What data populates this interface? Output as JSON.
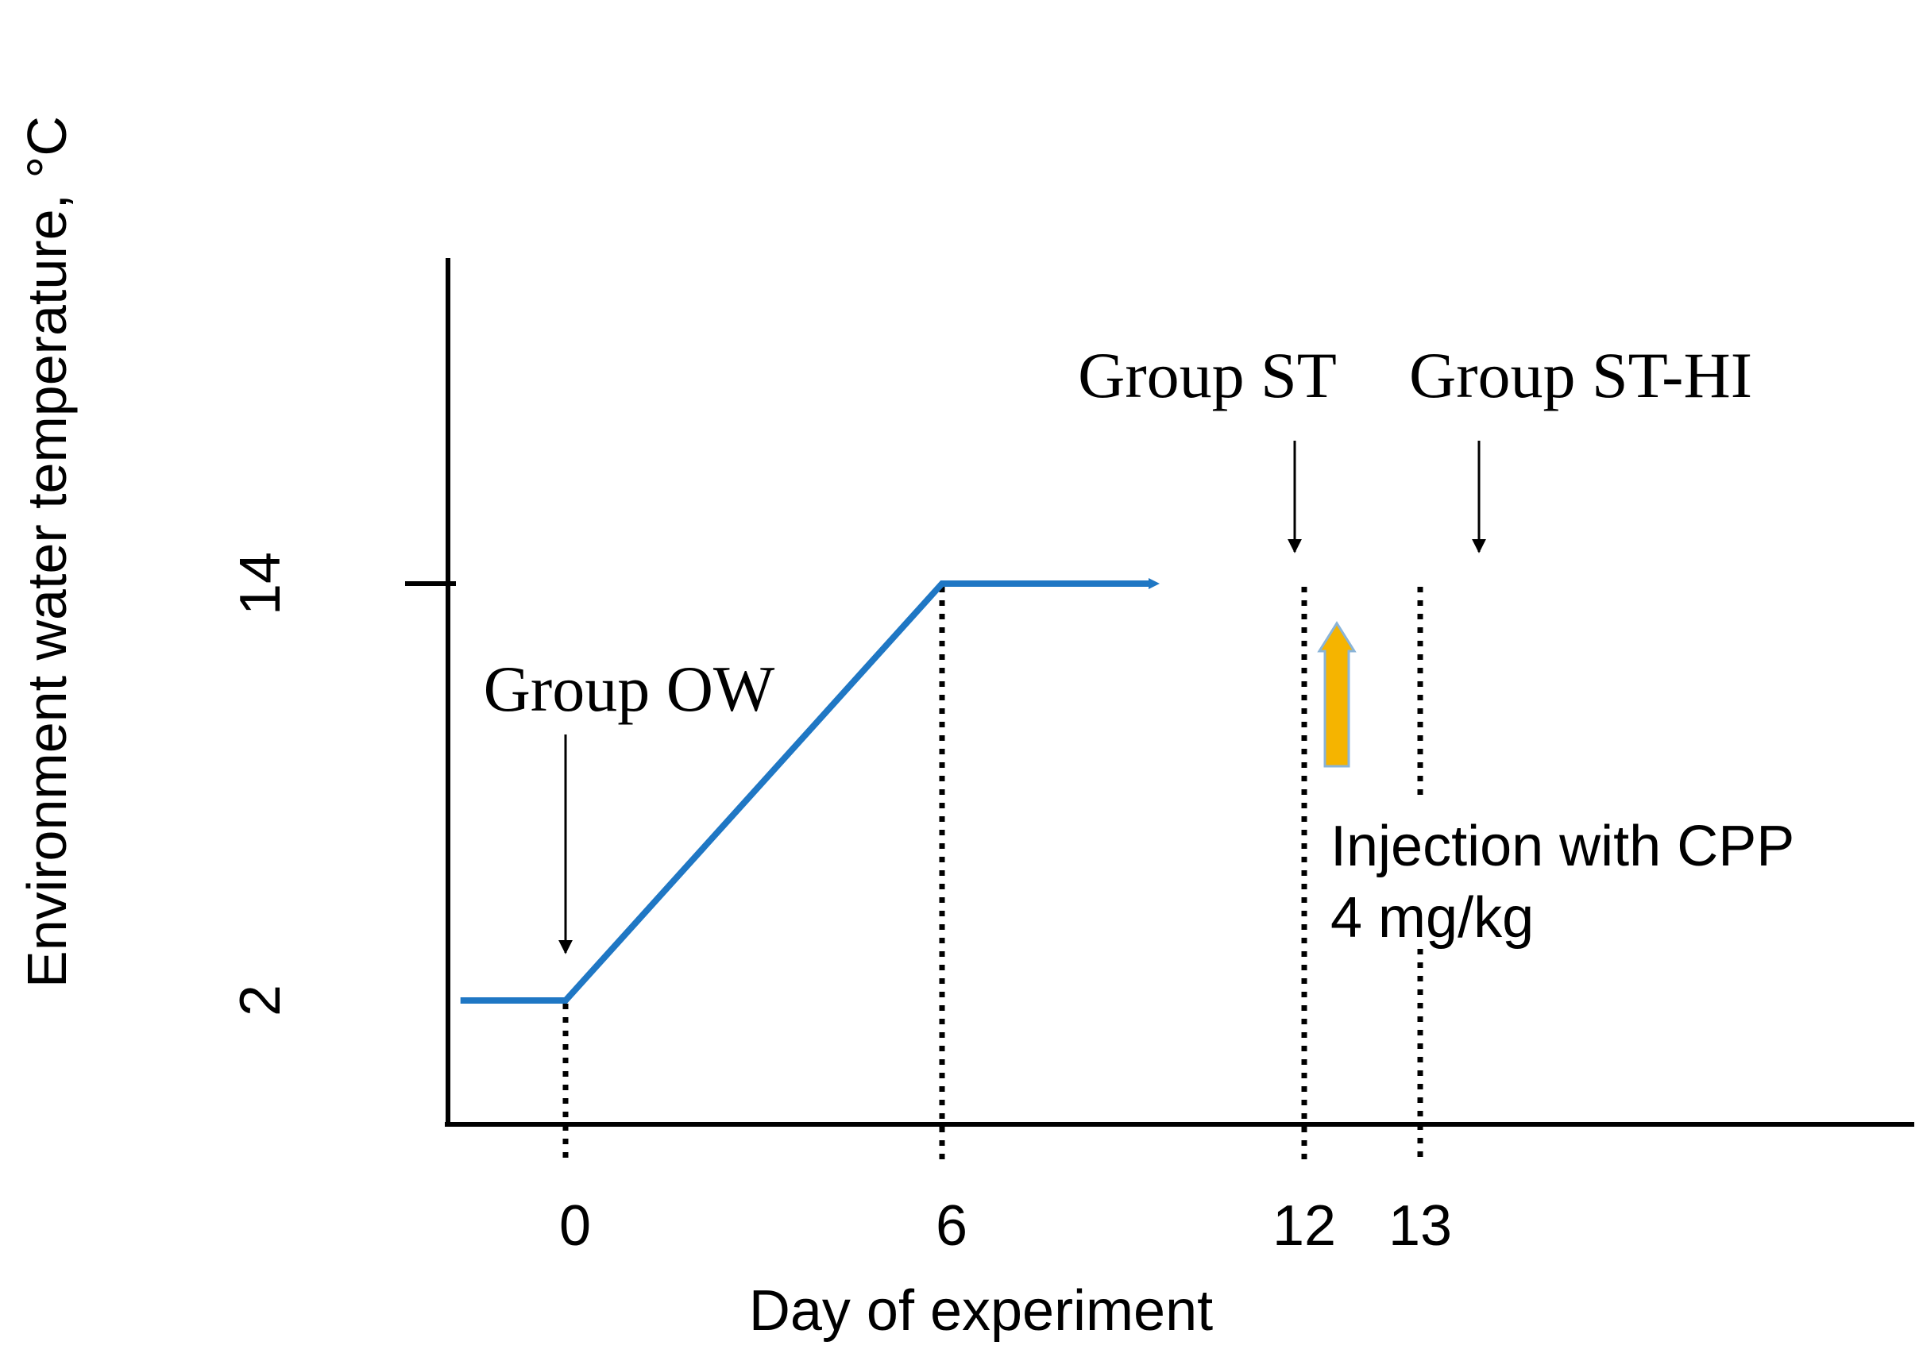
{
  "chart_data": {
    "type": "line",
    "xlabel": "Day of experiment",
    "ylabel": "Environment water temperature, °C",
    "x_ticks": [
      0,
      6,
      12,
      13
    ],
    "y_ticks": [
      2,
      14
    ],
    "xlim": [
      -2,
      22
    ],
    "ylim": [
      -1,
      30
    ],
    "grid": false,
    "series": [
      {
        "color": "#1f77c4",
        "x": [
          -1.8,
          0,
          6,
          9.5
        ],
        "y": [
          2,
          2,
          14,
          14
        ]
      }
    ],
    "markers": [
      {
        "label": "Group OW",
        "day": 0
      },
      {
        "label": "Group ST",
        "day": 12
      },
      {
        "label": "Group ST-HI",
        "day": 13
      }
    ],
    "annotation": {
      "lines": [
        "Injection with CPP",
        "4 mg/kg"
      ],
      "arrow_color": "#f5b400"
    }
  }
}
